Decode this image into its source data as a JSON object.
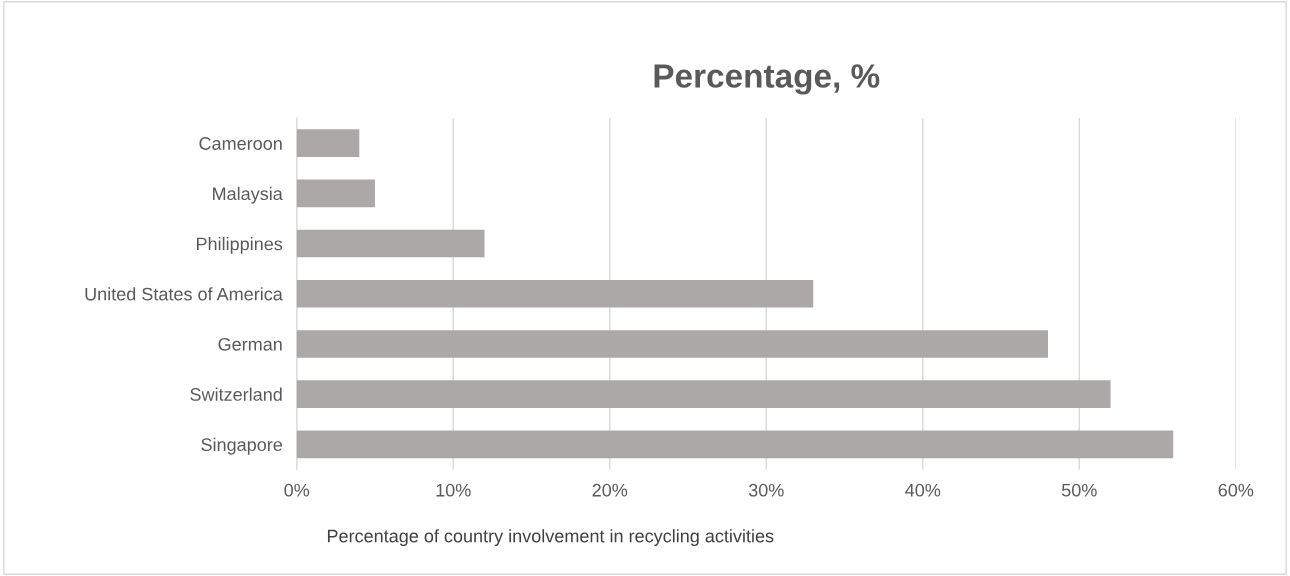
{
  "chart_data": {
    "type": "bar",
    "orientation": "horizontal",
    "title": "Percentage, %",
    "xlabel": "Percentage of country involvement in recycling activities",
    "categories": [
      "Cameroon",
      "Malaysia",
      "Philippines",
      "United States of America",
      "German",
      "Switzerland",
      "Singapore"
    ],
    "values": [
      4,
      5,
      12,
      33,
      48,
      52,
      56
    ],
    "color": "#aca8a8",
    "xlim": [
      0,
      60
    ],
    "xticks": [
      {
        "value": 0,
        "label": "0%"
      },
      {
        "value": 10,
        "label": "10%"
      },
      {
        "value": 20,
        "label": "20%"
      },
      {
        "value": 30,
        "label": "30%"
      },
      {
        "value": 40,
        "label": "40%"
      },
      {
        "value": 50,
        "label": "50%"
      },
      {
        "value": 60,
        "label": "60%"
      }
    ],
    "grid": "x"
  }
}
